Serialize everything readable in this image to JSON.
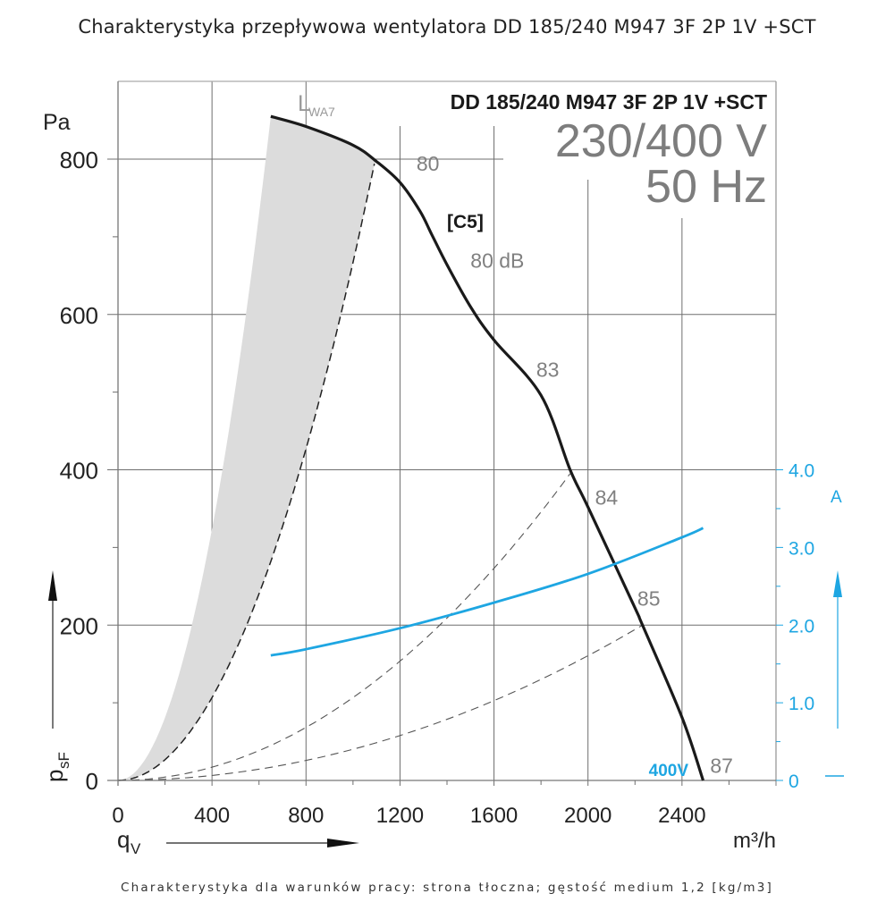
{
  "page": {
    "title": "Charakterystyka przepływowa wentylatora DD 185/240 M947 3F 2P 1V +SCT",
    "footer": "Charakterystyka dla warunków pracy: strona tłoczna; gęstość medium 1,2 [kg/m3]"
  },
  "chart_data": {
    "type": "line",
    "title": "DD 185/240 M947 3F 2P 1V +SCT",
    "subtitle_voltage": "230/400 V",
    "subtitle_frequency": "50 Hz",
    "sound_label_prefix": "L",
    "sound_label_sub": "WA7",
    "curve_label": "[C5]",
    "xlabel": "q",
    "xlabel_sub": "V",
    "xunit": "m³/h",
    "ylabel": "p",
    "ylabel_sub": "sF",
    "yunit": "Pa",
    "y2unit": "A",
    "xlim": [
      0,
      2800
    ],
    "ylim": [
      0,
      900
    ],
    "y2lim": [
      0,
      4.0
    ],
    "x_ticks": [
      0,
      400,
      800,
      1200,
      1600,
      2000,
      2400
    ],
    "x_tick_labels": [
      "0",
      "400",
      "800",
      "1200",
      "1600",
      "2000",
      "2400"
    ],
    "x_minor_ticks": [
      200,
      600,
      1000,
      1400,
      1800,
      2200,
      2600
    ],
    "y_ticks": [
      0,
      200,
      400,
      600,
      800
    ],
    "y_tick_labels": [
      "0",
      "200",
      "400",
      "600",
      "800"
    ],
    "y_minor_ticks": [
      100,
      300,
      500,
      700
    ],
    "y2_ticks": [
      0,
      1.0,
      2.0,
      3.0,
      4.0
    ],
    "y2_tick_labels": [
      "0",
      "1.0",
      "2.0",
      "3.0",
      "4.0"
    ],
    "y2_minor_ticks": [
      0.5,
      1.5,
      2.5,
      3.5
    ],
    "grid": true,
    "colors": {
      "pressure": "#1a1a1a",
      "current": "#1ea6e2",
      "grid": "#6e6e6e",
      "shaded_region": "#dcdcdc",
      "system_curves": "#555555",
      "annotation": "#808080"
    },
    "series": [
      {
        "name": "pressure p_sF [Pa]",
        "axis": "left",
        "x": [
          650,
          800,
          1000,
          1100,
          1200,
          1285,
          1335,
          1400,
          1500,
          1600,
          1800,
          1924,
          2000,
          2200,
          2232,
          2400,
          2490
        ],
        "y": [
          855,
          842,
          818,
          797,
          770,
          733,
          703,
          664,
          610,
          567,
          496,
          400,
          352,
          222,
          200,
          81,
          0
        ]
      },
      {
        "name": "current 400V [A]",
        "axis": "right",
        "label": "400V",
        "x": [
          650,
          800,
          1200,
          1600,
          2000,
          2400,
          2490
        ],
        "y": [
          1.61,
          1.69,
          1.96,
          2.29,
          2.66,
          3.13,
          3.25
        ]
      }
    ],
    "system_curves": [
      {
        "name": "boundary-dashed",
        "end_x": 1091,
        "end_y": 794,
        "style": "dashed-dark"
      },
      {
        "name": "system-84",
        "end_x": 1924,
        "end_y": 395,
        "style": "dashed-light"
      },
      {
        "name": "system-85",
        "end_x": 2232,
        "end_y": 200,
        "style": "dashed-light"
      }
    ],
    "shaded_region": {
      "left_edge_end_x": 650,
      "left_edge_end_y": 855,
      "right_edge_end_x": 1091,
      "right_edge_end_y": 794
    },
    "sound_annotations": [
      {
        "text": "80",
        "x": 1270,
        "y": 785
      },
      {
        "text": "80 dB",
        "x": 1500,
        "y": 660
      },
      {
        "text": "83",
        "x": 1780,
        "y": 520
      },
      {
        "text": "84",
        "x": 2030,
        "y": 355
      },
      {
        "text": "85",
        "x": 2210,
        "y": 225
      },
      {
        "text": "87",
        "x": 2520,
        "y": 10
      }
    ]
  }
}
